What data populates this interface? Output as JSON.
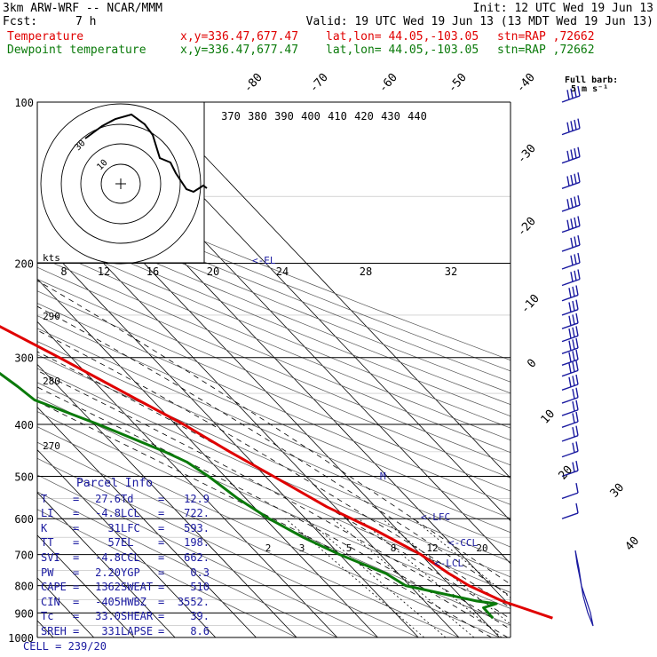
{
  "header": {
    "model": "3km ARW-WRF -- NCAR/MMM",
    "init": "Init: 12 UTC Wed 19 Jun 13",
    "fcst_label": "Fcst:",
    "fcst_value": "7 h",
    "valid": "Valid: 19 UTC Wed 19 Jun 13 (13 MDT Wed 19 Jun 13)",
    "temp_label": "Temperature",
    "dew_label": "Dewpoint temperature",
    "loc_xy": "x,y=336.47,677.47",
    "loc_latlon": "lat,lon= 44.05,-103.05",
    "loc_stn": "stn=RAP ,72662"
  },
  "colors": {
    "temperature": "#e00000",
    "dewpoint": "#0a7a0a",
    "wind": "#1a1aa0"
  },
  "wind_legend": {
    "line1": "Full barb:",
    "line2": "5 m s⁻¹"
  },
  "parcel": {
    "title": "Parcel Info",
    "rows": [
      [
        "T",
        "=",
        "27.6",
        "Td",
        "=",
        "12.9"
      ],
      [
        "LI",
        "=",
        "-4.8",
        "LCL",
        "=",
        "722."
      ],
      [
        "K",
        "=",
        "31",
        "LFC",
        "=",
        "593."
      ],
      [
        "TT",
        "=",
        "57",
        "EL",
        "=",
        "198."
      ],
      [
        "SVI",
        "=",
        "-4.8",
        "CCL",
        "=",
        "662."
      ],
      [
        "PW",
        "=",
        "2.20",
        "YGP",
        "=",
        "0.3"
      ],
      [
        "CAPE",
        "=",
        "1362",
        "SWEAT",
        "=",
        "510"
      ],
      [
        "CIN",
        "=",
        "-405",
        "HWBZ",
        "=",
        "3552."
      ],
      [
        "Tc",
        "=",
        "33.0",
        "SHEAR",
        "=",
        "39."
      ],
      [
        "SREH",
        "=",
        "331",
        "LAPSE",
        "=",
        "8.6"
      ]
    ],
    "cell_label": "CELL = 239/20"
  },
  "annotations": {
    "el": "<-EL",
    "lfc": "<-LFC",
    "ccl": "<-CCL",
    "lcl": "<-LCL",
    "m": "M"
  },
  "hodograph": {
    "kts_label": "kts",
    "rings": [
      "10",
      "30"
    ]
  },
  "chart_data": {
    "type": "line",
    "pressure_labels": [
      "100",
      "200",
      "300",
      "400",
      "500",
      "600",
      "700",
      "800",
      "900",
      "1000"
    ],
    "isotherm_labels": [
      "-80",
      "-70",
      "-60",
      "-50",
      "-40",
      "-30",
      "-20",
      "-10",
      "0",
      "10",
      "20",
      "30",
      "40"
    ],
    "theta_labels": [
      "370",
      "380",
      "390",
      "400",
      "410",
      "420",
      "430",
      "440"
    ],
    "wet_bulb_labels_top": [
      "8",
      "12",
      "16",
      "20",
      "24",
      "28",
      "32"
    ],
    "dry_adiabat_labels_left": [
      "290",
      "280",
      "270"
    ],
    "mixing_ratio_labels": [
      "2",
      "3",
      "5",
      "8",
      "12",
      "20"
    ],
    "series": [
      {
        "name": "Temperature",
        "pressure_hpa": [
          920,
          880,
          855,
          800,
          760,
          700,
          630,
          570,
          500,
          450,
          400,
          350,
          300,
          250,
          215,
          205,
          197,
          185,
          180,
          150,
          135,
          125,
          110,
          100
        ],
        "temp_c": [
          27.6,
          22.5,
          19.2,
          14.6,
          12.5,
          10.0,
          4.5,
          -2.0,
          -8.0,
          -13.0,
          -18.0,
          -25.0,
          -33.0,
          -43.0,
          -50.5,
          -53.5,
          -55.0,
          -55.0,
          -54.0,
          -51.0,
          -49.0,
          -49.0,
          -49.0,
          -50.0
        ]
      },
      {
        "name": "Dewpoint temperature",
        "pressure_hpa": [
          920,
          880,
          865,
          855,
          800,
          760,
          700,
          650,
          600,
          550,
          500,
          470,
          450,
          400,
          360,
          340,
          300,
          260,
          215,
          200,
          183,
          175,
          157,
          145,
          130,
          100
        ],
        "temp_c": [
          12.9,
          13.0,
          17.1,
          12.9,
          -1.0,
          -3.0,
          -10.0,
          -15.0,
          -19.0,
          -22.0,
          -24.0,
          -26.0,
          -29.0,
          -39.0,
          -49.0,
          -50.0,
          -53.0,
          -59.0,
          -64.0,
          -65.0,
          -65.0,
          -65.0,
          -66.0,
          -67.0,
          -68.0,
          -73.0
        ]
      }
    ],
    "wind_profile_pressure_hpa": [
      100,
      115,
      130,
      145,
      160,
      175,
      190,
      205,
      220,
      235,
      250,
      265,
      280,
      295,
      310,
      325,
      345,
      365,
      385,
      405,
      430,
      460,
      500,
      550,
      600
    ],
    "wind_profile_kts": [
      35,
      35,
      35,
      35,
      35,
      35,
      30,
      30,
      30,
      25,
      25,
      25,
      25,
      25,
      25,
      25,
      25,
      20,
      20,
      20,
      20,
      15,
      15,
      10,
      10
    ]
  }
}
